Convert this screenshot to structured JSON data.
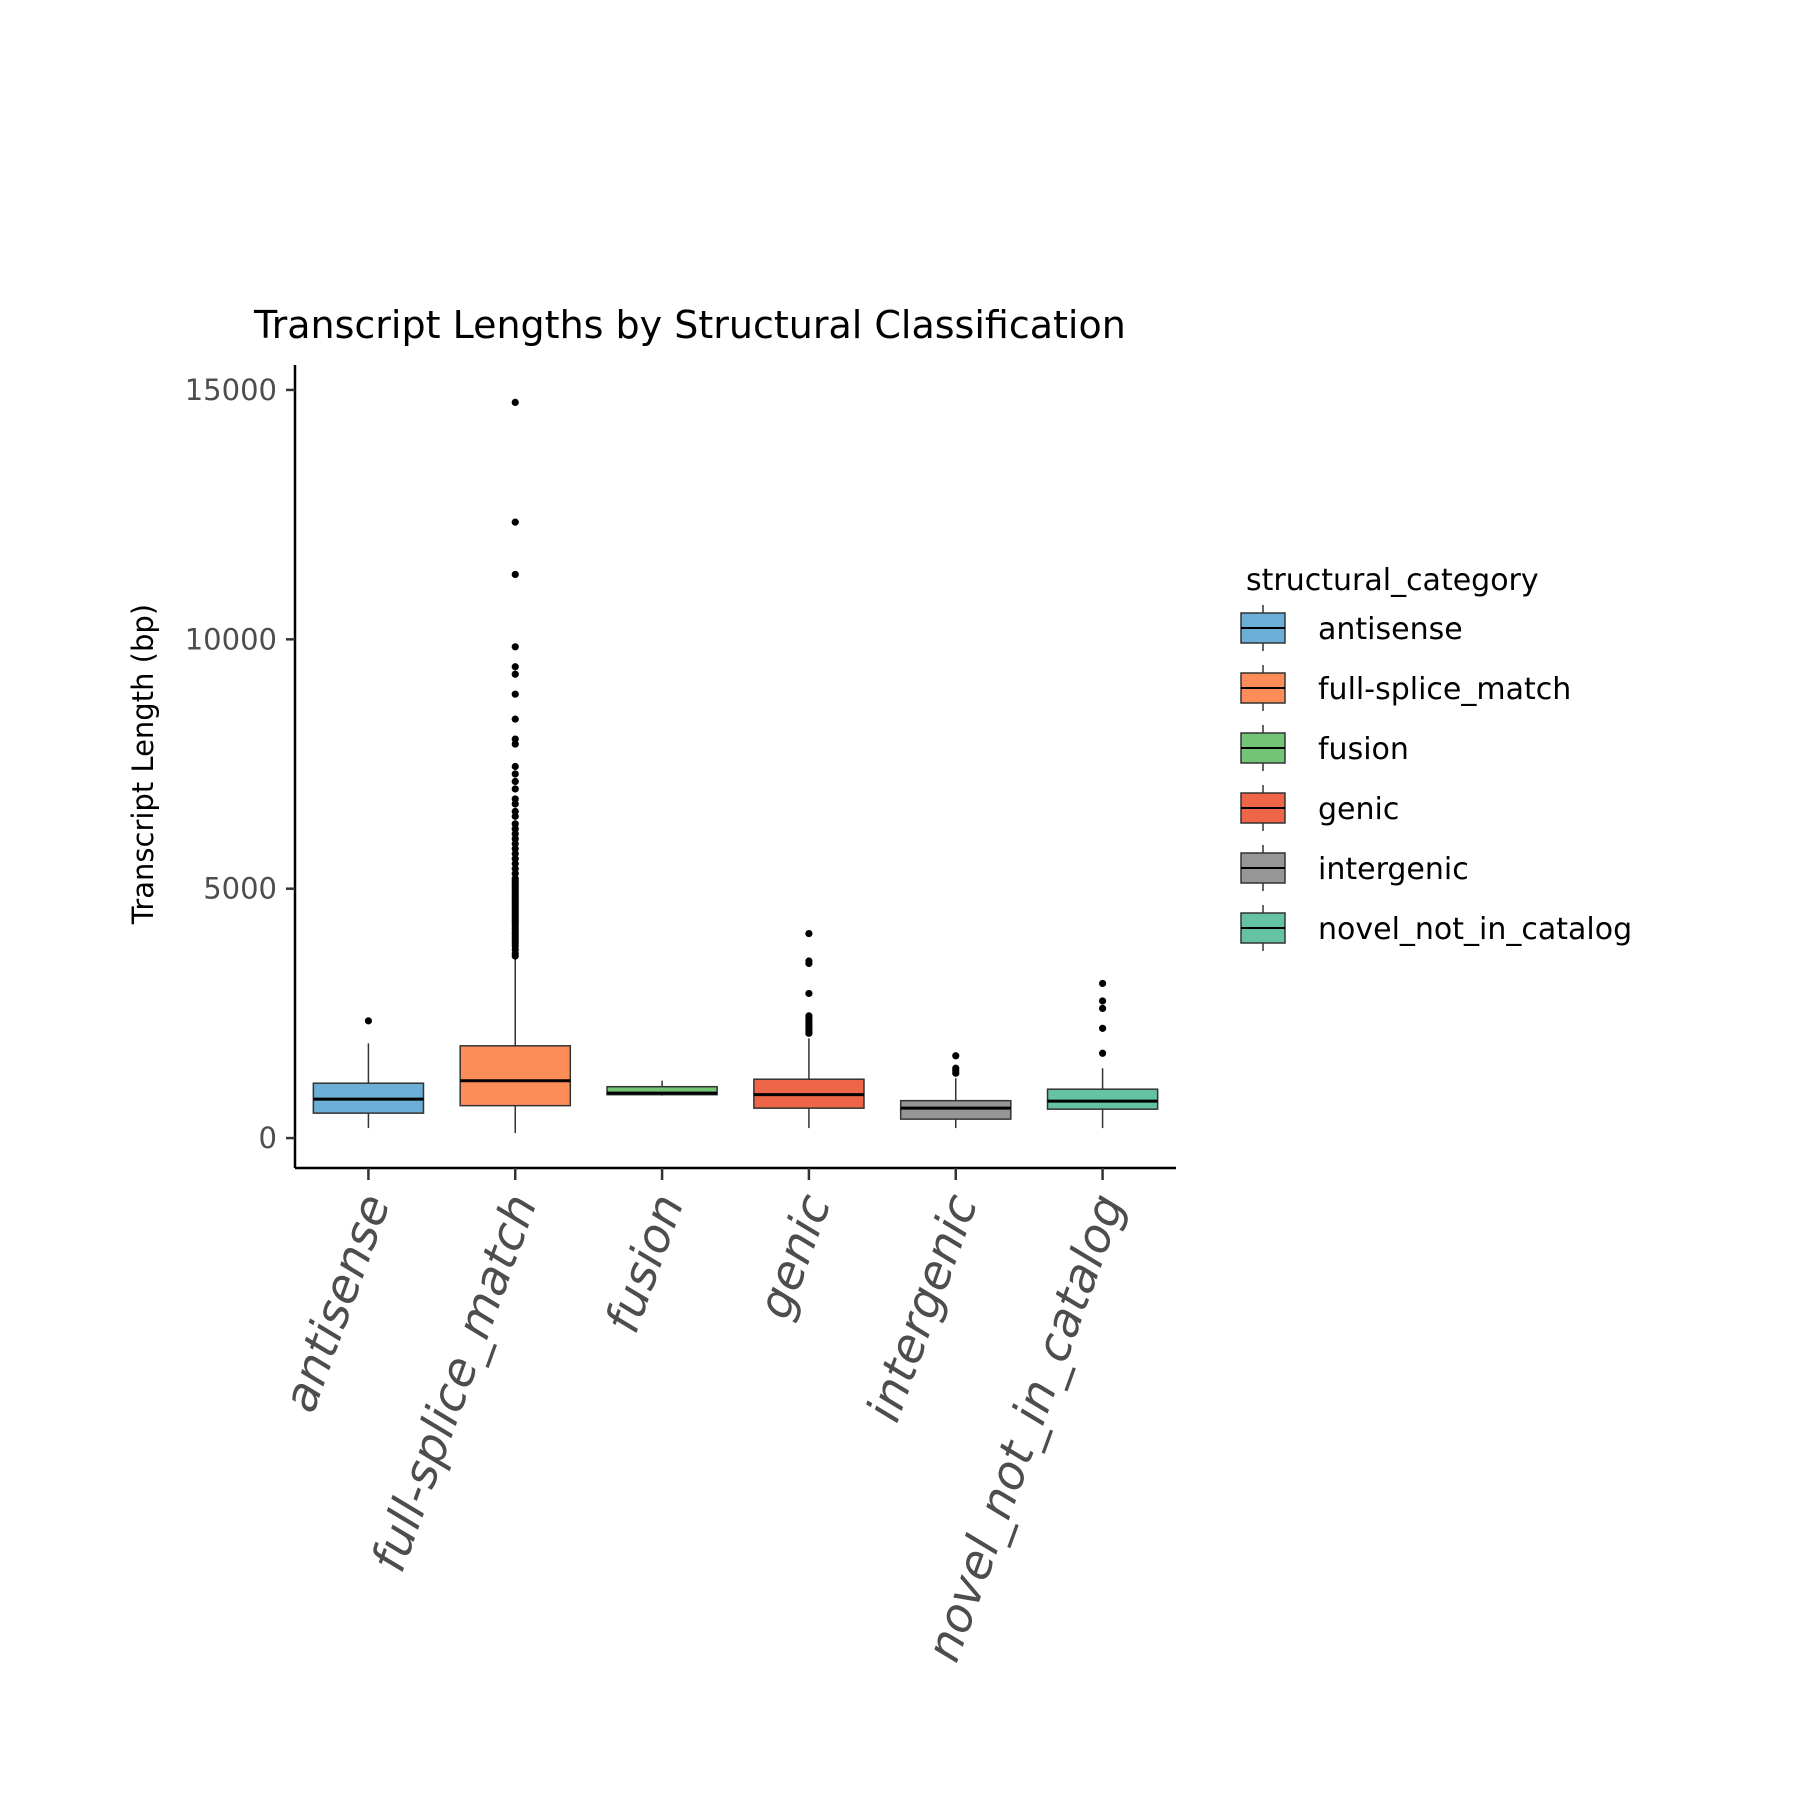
{
  "chart_data": {
    "type": "boxplot",
    "title": "Transcript Lengths by Structural Classification",
    "xlabel": "",
    "ylabel": "Transcript Length (bp)",
    "ylim": [
      -600,
      15500
    ],
    "yticks": [
      0,
      5000,
      10000,
      15000
    ],
    "yticklabels": [
      "0",
      "5000",
      "10000",
      "15000"
    ],
    "grid": false,
    "legend": {
      "title": "structural_category",
      "placement": "right"
    },
    "categories": [
      "antisense",
      "full-splice_match",
      "fusion",
      "genic",
      "intergenic",
      "novel_not_in_catalog"
    ],
    "series": [
      {
        "name": "antisense",
        "color": "#6baed6",
        "min": 200,
        "q1": 500,
        "median": 780,
        "q3": 1100,
        "max": 1900,
        "outliers": [
          2350
        ]
      },
      {
        "name": "full-splice_match",
        "color": "#fc8d59",
        "min": 100,
        "q1": 650,
        "median": 1150,
        "q3": 1850,
        "max": 3600,
        "outliers": [
          3650,
          3700,
          3780,
          3850,
          3900,
          3950,
          4000,
          4050,
          4100,
          4150,
          4200,
          4250,
          4300,
          4350,
          4400,
          4450,
          4500,
          4550,
          4600,
          4650,
          4700,
          4750,
          4800,
          4850,
          4900,
          4950,
          5000,
          5050,
          5100,
          5150,
          5200,
          5300,
          5400,
          5500,
          5600,
          5700,
          5800,
          5900,
          6000,
          6100,
          6200,
          6300,
          6450,
          6550,
          6700,
          6800,
          7000,
          7150,
          7300,
          7450,
          7900,
          8000,
          8400,
          8900,
          9300,
          9450,
          9850,
          11300,
          12350,
          14750
        ]
      },
      {
        "name": "fusion",
        "color": "#74c476",
        "min": 850,
        "q1": 870,
        "median": 900,
        "q3": 1030,
        "max": 1150,
        "outliers": []
      },
      {
        "name": "genic",
        "color": "#ef6548",
        "min": 200,
        "q1": 600,
        "median": 870,
        "q3": 1180,
        "max": 2000,
        "outliers": [
          2100,
          2150,
          2200,
          2250,
          2300,
          2350,
          2400,
          2450,
          2900,
          3500,
          3550,
          4100
        ]
      },
      {
        "name": "intergenic",
        "color": "#969696",
        "min": 200,
        "q1": 380,
        "median": 600,
        "q3": 750,
        "max": 1200,
        "outliers": [
          1300,
          1350,
          1400,
          1650
        ]
      },
      {
        "name": "novel_not_in_catalog",
        "color": "#66c2a5",
        "min": 200,
        "q1": 580,
        "median": 740,
        "q3": 980,
        "max": 1400,
        "outliers": [
          1700,
          2200,
          2600,
          2750,
          3100
        ]
      }
    ]
  }
}
